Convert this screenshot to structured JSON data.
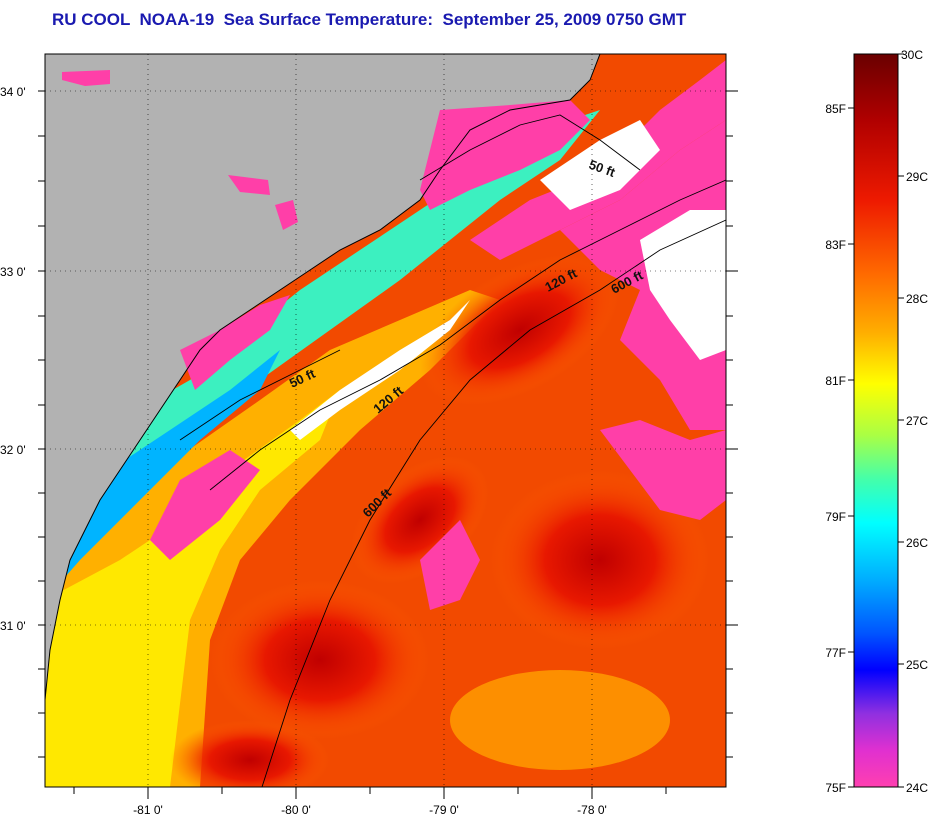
{
  "title": "RU COOL  NOAA-19  Sea Surface Temperature:  September 25, 2009 0750 GMT",
  "map": {
    "lat_labels": [
      "34 0'",
      "33 0'",
      "32 0'",
      "31 0'"
    ],
    "lon_labels": [
      "-81 0'",
      "-80 0'",
      "-79 0'",
      "-78 0'"
    ],
    "contours": [
      {
        "label": "50 ft"
      },
      {
        "label": "50 ft"
      },
      {
        "label": "120 ft"
      },
      {
        "label": "120 ft"
      },
      {
        "label": "600 ft"
      },
      {
        "label": "600 ft"
      }
    ],
    "colors": {
      "land": "#b2b2b2",
      "cloud": "#ffffff",
      "cold": "#ff3fa8"
    }
  },
  "colorbar": {
    "celsius_labels": [
      "30C",
      "29C",
      "28C",
      "27C",
      "26C",
      "25C",
      "24C"
    ],
    "fahrenheit_labels": [
      "85F",
      "83F",
      "81F",
      "79F",
      "77F",
      "75F"
    ]
  }
}
